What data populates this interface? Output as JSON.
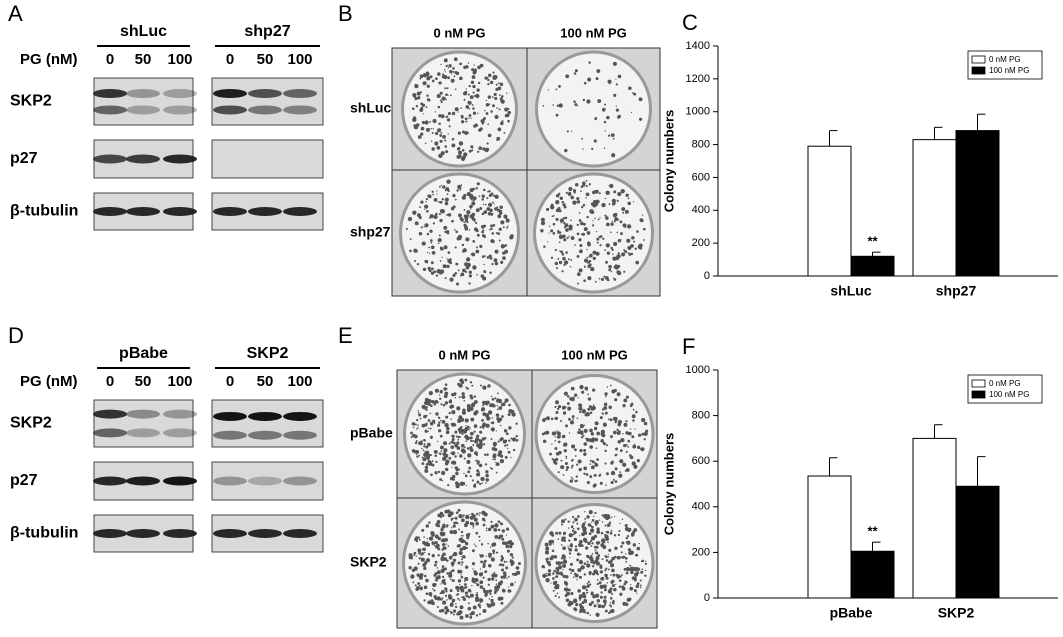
{
  "panels": [
    {
      "letter": "A",
      "groups": [
        "shLuc",
        "shp27"
      ],
      "dose_label": "PG (nM)",
      "doses": [
        [
          "0",
          "50",
          "100"
        ],
        [
          "0",
          "50",
          "100"
        ]
      ],
      "rows": [
        "SKP2",
        "p27",
        "β-tubulin"
      ]
    },
    {
      "letter": "B",
      "columns": [
        "0 nM PG",
        "100 nM PG"
      ],
      "rows": [
        "shLuc",
        "shp27"
      ]
    },
    {
      "letter": "D",
      "groups": [
        "pBabe",
        "SKP2"
      ],
      "dose_label": "PG (nM)",
      "doses": [
        [
          "0",
          "50",
          "100"
        ],
        [
          "0",
          "50",
          "100"
        ]
      ],
      "rows": [
        "SKP2",
        "p27",
        "β-tubulin"
      ]
    },
    {
      "letter": "E",
      "columns": [
        "0 nM PG",
        "100 nM PG"
      ],
      "rows": [
        "pBabe",
        "SKP2"
      ]
    }
  ],
  "chart_data": [
    {
      "type": "bar",
      "panel": "C",
      "ylabel": "Colony numbers",
      "categories": [
        "shLuc",
        "shp27"
      ],
      "series": [
        {
          "name": "0 nM PG",
          "color": "#ffffff",
          "values": [
            790,
            830
          ],
          "errors": [
            95,
            75
          ]
        },
        {
          "name": "100 nM PG",
          "color": "#000000",
          "values": [
            120,
            885
          ],
          "errors": [
            25,
            100
          ]
        }
      ],
      "annotations": [
        "**"
      ],
      "ylim": [
        0,
        1400
      ],
      "yticks": [
        0,
        200,
        400,
        600,
        800,
        1000,
        1200,
        1400
      ],
      "legend": "upper right"
    },
    {
      "type": "bar",
      "panel": "F",
      "ylabel": "Colony numbers",
      "categories": [
        "pBabe",
        "SKP2"
      ],
      "series": [
        {
          "name": "0 nM PG",
          "color": "#ffffff",
          "values": [
            535,
            700
          ],
          "errors": [
            80,
            60
          ]
        },
        {
          "name": "100 nM PG",
          "color": "#000000",
          "values": [
            205,
            490
          ],
          "errors": [
            40,
            130
          ]
        }
      ],
      "annotations": [
        "**"
      ],
      "ylim": [
        0,
        1000
      ],
      "yticks": [
        0,
        200,
        400,
        600,
        800,
        1000
      ],
      "legend": "upper right"
    }
  ]
}
